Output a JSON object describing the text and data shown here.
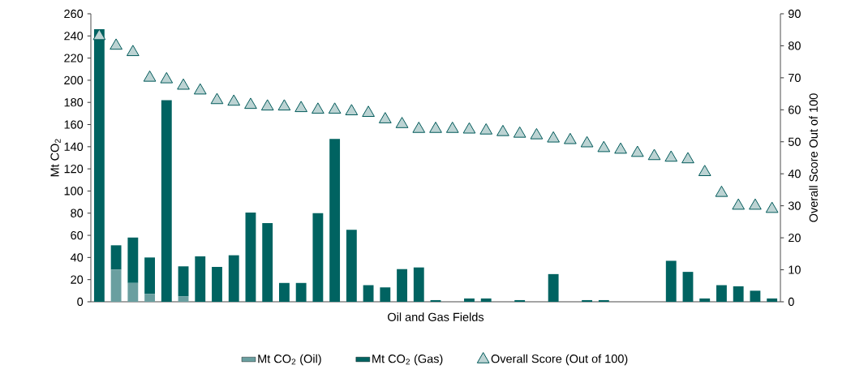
{
  "chart_data": {
    "type": "bar",
    "stacked": true,
    "xlabel": "Oil and Gas Fields",
    "ylabel": "Mt CO$_{2}$",
    "y2label": "Overall Score Out of 100",
    "categories": [
      null,
      null,
      null,
      null,
      null,
      null,
      null,
      null,
      null,
      null,
      null,
      null,
      null,
      null,
      null,
      null,
      null,
      null,
      null,
      null,
      null,
      null,
      null,
      null,
      null,
      null,
      null,
      null,
      null,
      null,
      null,
      null,
      null,
      null,
      null,
      null,
      null,
      null,
      null,
      null,
      null
    ],
    "series": [
      {
        "name": "Mt CO$_{2}$ (Oil)",
        "color": "#6a9fa0",
        "values": [
          0,
          29,
          17,
          7,
          0,
          5,
          0,
          0,
          0,
          0,
          0,
          0,
          0,
          0,
          0,
          0,
          0,
          0,
          0,
          0,
          0,
          0,
          0,
          0,
          0,
          0,
          0,
          0,
          0,
          0,
          0,
          0,
          0,
          0,
          0,
          0,
          0,
          0,
          0,
          0,
          0
        ]
      },
      {
        "name": "Mt CO$_{2}$ (Gas)",
        "color": "#006361",
        "values": [
          246,
          22,
          41,
          33,
          182,
          27,
          41,
          31.5,
          42,
          80.5,
          71,
          17,
          17,
          80,
          147,
          65,
          15,
          13,
          29.5,
          31,
          1.5,
          0,
          3,
          3,
          0,
          1.5,
          0,
          25,
          0,
          1.5,
          1.5,
          0,
          0,
          0,
          37,
          27,
          3,
          15,
          14,
          10,
          3
        ]
      },
      {
        "name": "Overall Score (Out of 100)",
        "type": "scatter",
        "axis": "y2",
        "marker": "triangle",
        "color": "#bcd3d3",
        "values": [
          83,
          80,
          78,
          70,
          69.5,
          67.5,
          66,
          63,
          62.5,
          61.5,
          61,
          61,
          60.5,
          60,
          60,
          59.5,
          59,
          57,
          55.5,
          54,
          54,
          54,
          53.8,
          53.5,
          53,
          52.5,
          52,
          51,
          50.5,
          49.5,
          48,
          47.5,
          46.5,
          45.5,
          45,
          44.5,
          40.5,
          34,
          30,
          30,
          29
        ]
      }
    ],
    "ylim": [
      0,
      260
    ],
    "yticks": [
      0,
      20,
      40,
      60,
      80,
      100,
      120,
      140,
      160,
      180,
      200,
      220,
      240,
      260
    ],
    "y2lim": [
      0,
      90
    ],
    "y2ticks": [
      0,
      10,
      20,
      30,
      40,
      50,
      60,
      70,
      80,
      90
    ],
    "legend": "bottom",
    "grid": false
  }
}
